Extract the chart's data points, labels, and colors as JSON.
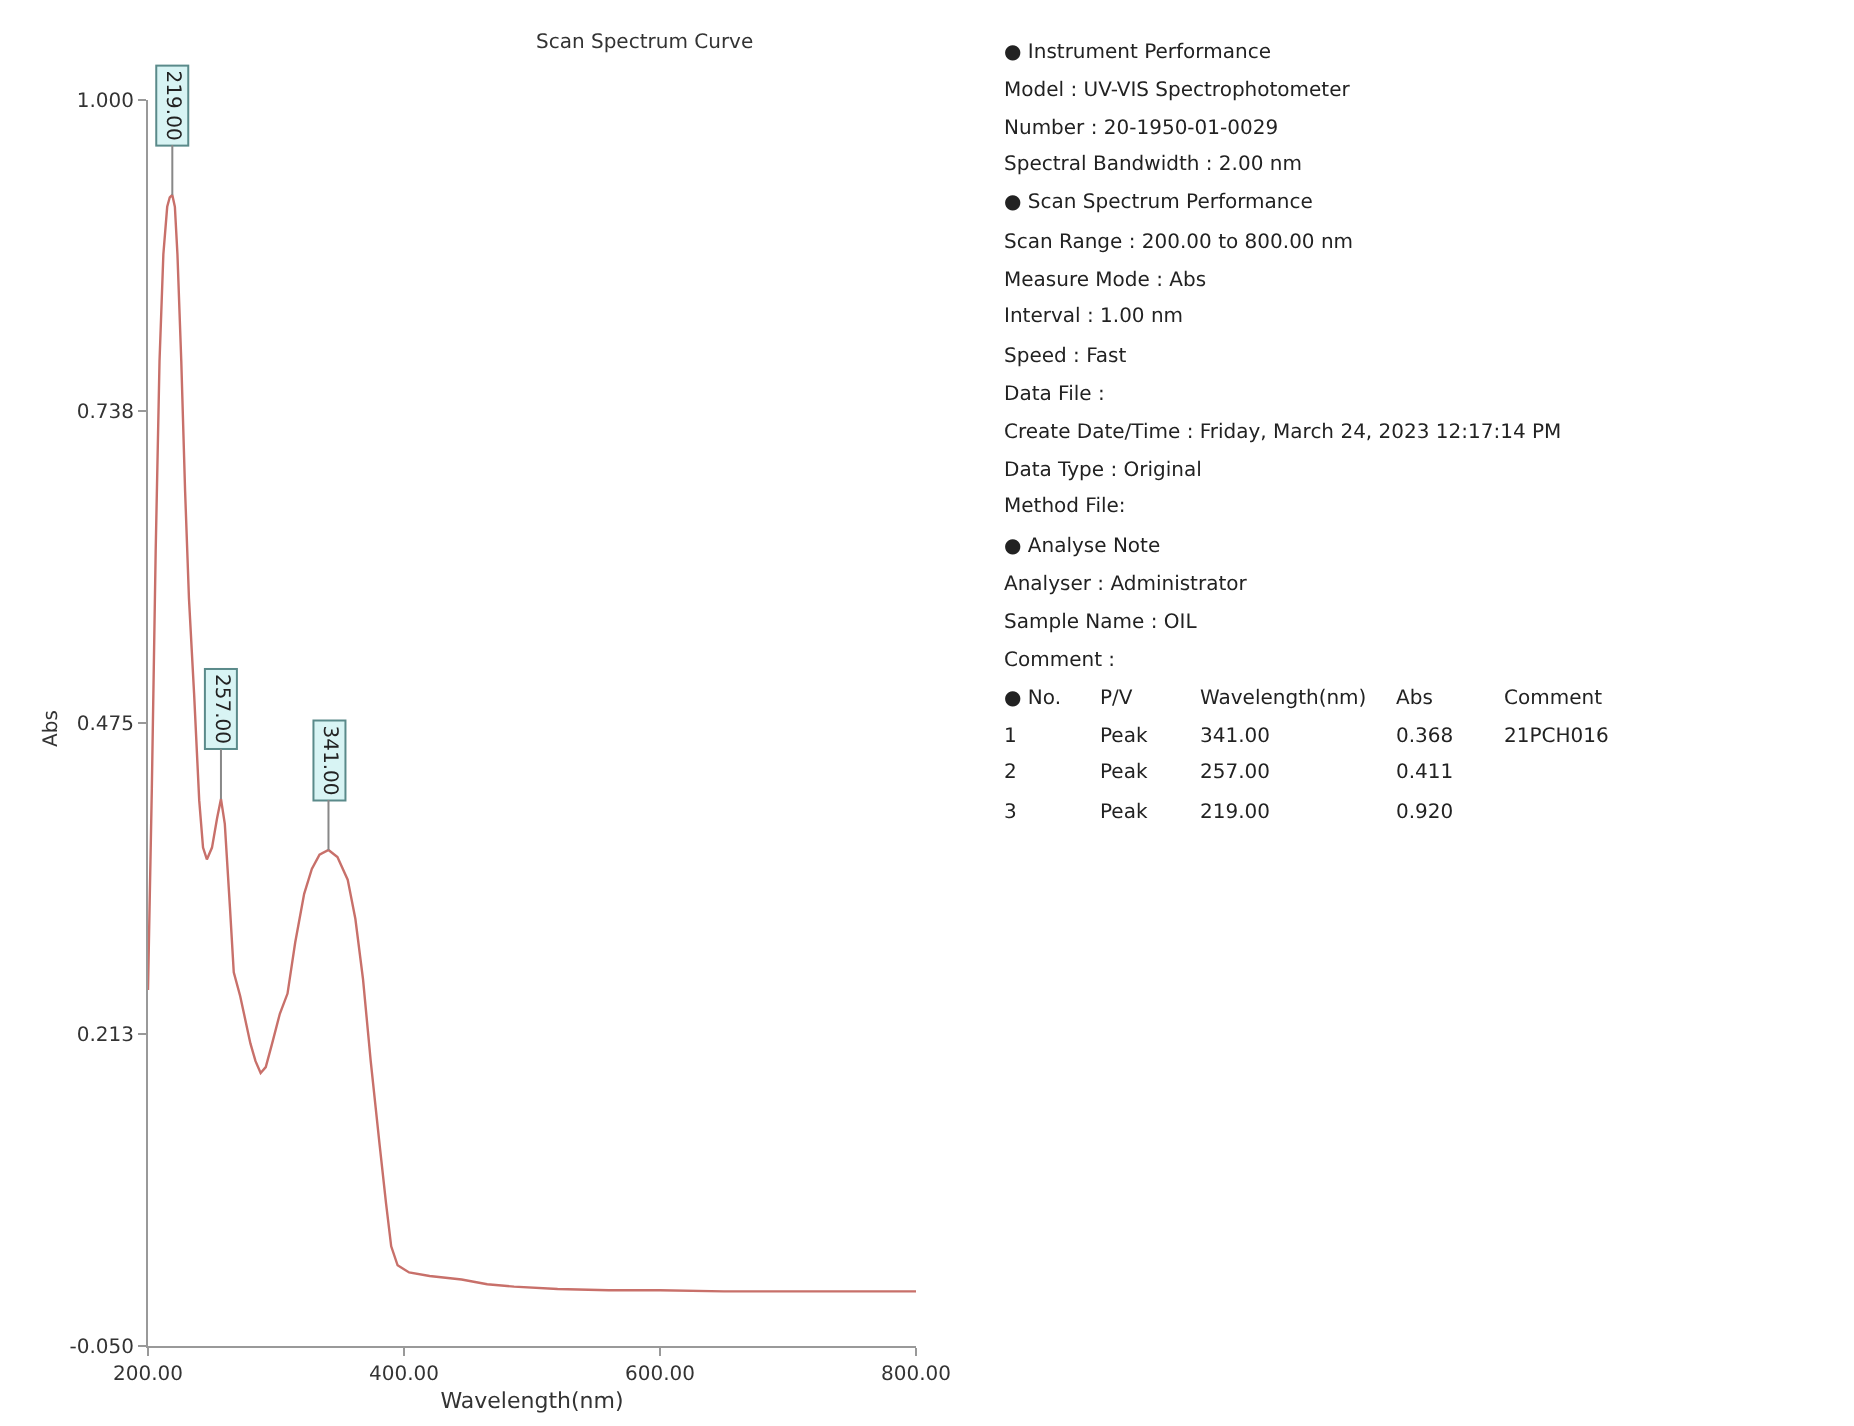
{
  "chart_data": {
    "type": "line",
    "title": "Scan Spectrum Curve",
    "xlabel": "Wavelength(nm)",
    "ylabel": "Abs",
    "x": [
      200,
      203,
      206,
      209,
      212,
      215,
      217,
      219,
      221,
      223,
      226,
      229,
      232,
      236,
      240,
      243,
      246,
      250,
      254,
      257,
      260,
      264,
      267,
      272,
      276,
      280,
      284,
      288,
      292,
      297,
      303,
      309,
      315,
      322,
      328,
      334,
      341,
      348,
      356,
      362,
      368,
      374,
      381,
      386,
      390,
      395,
      404,
      420,
      445,
      465,
      486,
      520,
      560,
      600,
      650,
      700,
      750,
      800
    ],
    "series": [
      {
        "color": "#c8706a",
        "values": [
          0.25,
          0.42,
          0.62,
          0.78,
          0.87,
          0.91,
          0.918,
          0.92,
          0.91,
          0.87,
          0.78,
          0.67,
          0.58,
          0.5,
          0.41,
          0.37,
          0.36,
          0.37,
          0.395,
          0.411,
          0.39,
          0.32,
          0.265,
          0.245,
          0.225,
          0.205,
          0.19,
          0.18,
          0.185,
          0.205,
          0.23,
          0.247,
          0.29,
          0.331,
          0.352,
          0.364,
          0.368,
          0.362,
          0.343,
          0.31,
          0.259,
          0.19,
          0.119,
          0.07,
          0.034,
          0.018,
          0.012,
          0.009,
          0.006,
          0.002,
          0.0,
          -0.002,
          -0.003,
          -0.003,
          -0.004,
          -0.004,
          -0.004,
          -0.004
        ]
      }
    ],
    "xlim": [
      200,
      800
    ],
    "ylim": [
      -0.05,
      1.0
    ],
    "xticks": [
      {
        "value": 200,
        "label": "200.00"
      },
      {
        "value": 400,
        "label": "400.00"
      },
      {
        "value": 600,
        "label": "600.00"
      },
      {
        "value": 800,
        "label": "800.00"
      }
    ],
    "yticks": [
      {
        "value": -0.05,
        "label": "-0.050"
      },
      {
        "value": 0.213,
        "label": "0.213"
      },
      {
        "value": 0.475,
        "label": "0.475"
      },
      {
        "value": 0.738,
        "label": "0.738"
      },
      {
        "value": 1.0,
        "label": "1.000"
      }
    ],
    "marker": "none",
    "line_style": "solid",
    "annotations": [
      {
        "text": "219.00",
        "x": 219,
        "y": 0.92
      },
      {
        "text": "257.00",
        "x": 257,
        "y": 0.411
      },
      {
        "text": "341.00",
        "x": 341,
        "y": 0.368
      },
      "● Instrument Performance",
      "Model : UV-VIS Spectrophotometer",
      "Number : 20-1950-01-0029",
      "Spectral Bandwidth : 2.00 nm",
      "● Scan Spectrum Performance",
      "Scan Range : 200.00 to 800.00 nm",
      "Measure Mode : Abs",
      "Interval : 1.00 nm",
      "Speed : Fast",
      "Data File :",
      "Create Date/Time : Friday, March 24, 2023 12:17:14 PM",
      "Data Type : Original",
      "Method File:",
      "● Analyse Note",
      "Analyser : Administrator",
      "Sample Name : OIL",
      "Comment :",
      "● No.\tP/V\tWavelength(nm)\tAbs\tComment",
      "1\tPeak\t341.00\t0.368\t21PCH016",
      "2\tPeak\t257.00\t0.411",
      "3\tPeak\t219.00\t0.920"
    ]
  }
}
